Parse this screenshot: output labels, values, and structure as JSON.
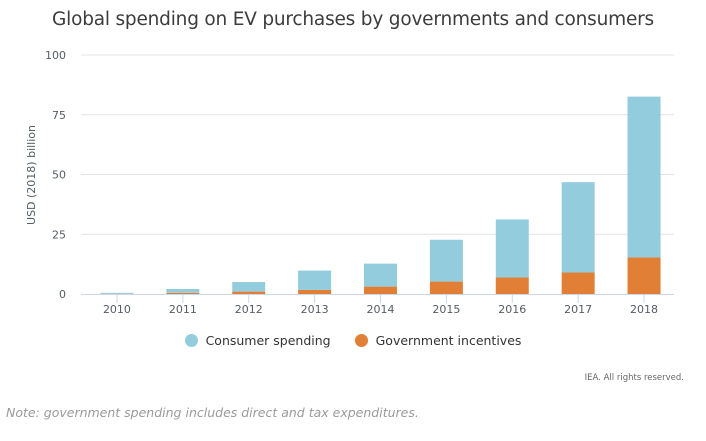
{
  "chart_data": {
    "type": "bar",
    "stacked": true,
    "title": "Global spending on EV purchases by governments and consumers",
    "xlabel": "",
    "ylabel": "USD (2018) billion",
    "ylim": [
      0,
      100
    ],
    "yticks": [
      0,
      25,
      50,
      75,
      100
    ],
    "grid": true,
    "legend_position": "bottom-center",
    "categories": [
      "2010",
      "2011",
      "2012",
      "2013",
      "2014",
      "2015",
      "2016",
      "2017",
      "2018"
    ],
    "series": [
      {
        "name": "Government incentives",
        "color": "#e07f35",
        "values": [
          0.1,
          0.5,
          1.0,
          1.7,
          3.1,
          5.2,
          6.9,
          9.0,
          15.3
        ]
      },
      {
        "name": "Consumer spending",
        "color": "#93cddd",
        "values": [
          0.4,
          1.6,
          4.0,
          8.1,
          9.6,
          17.5,
          24.3,
          37.8,
          67.3
        ]
      }
    ]
  },
  "legend": {
    "items": [
      {
        "label": "Consumer spending",
        "color": "#93cddd"
      },
      {
        "label": "Government incentives",
        "color": "#e07f35"
      }
    ]
  },
  "credit": "IEA. All rights reserved.",
  "note": "Note: government spending includes direct and tax expenditures."
}
